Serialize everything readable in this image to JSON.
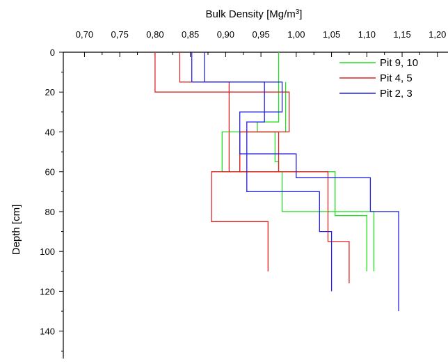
{
  "chart_data": {
    "type": "line",
    "xlabel": "Bulk Density [Mg/m",
    "xlabel_sup": "3",
    "xlabel_end": "]",
    "ylabel": "Depth [cm]",
    "x_axis_position": "top",
    "y_axis_inverted": true,
    "xlim": [
      0.67,
      1.215
    ],
    "ylim": [
      0,
      152
    ],
    "x_ticks": [
      "0,70",
      "0,75",
      "0,80",
      "0,85",
      "0,90",
      "0,95",
      "1,00",
      "1,05",
      "1,10",
      "1,15",
      "1,20"
    ],
    "x_tick_values": [
      0.7,
      0.75,
      0.8,
      0.85,
      0.9,
      0.95,
      1.0,
      1.05,
      1.1,
      1.15,
      1.2
    ],
    "y_ticks": [
      "0",
      "20",
      "40",
      "60",
      "80",
      "100",
      "120",
      "140"
    ],
    "y_tick_values": [
      0,
      20,
      40,
      60,
      80,
      100,
      120,
      140
    ],
    "grid": false,
    "legend_position": "top-right",
    "series": [
      {
        "name": "Pit 9, 10",
        "color": "#22dd22",
        "profiles": [
          [
            [
              0.975,
              0
            ],
            [
              0.975,
              15
            ],
            [
              0.975,
              15
            ],
            [
              0.975,
              35
            ],
            [
              0.945,
              35
            ],
            [
              0.945,
              40
            ],
            [
              0.97,
              40
            ],
            [
              0.97,
              55
            ],
            [
              0.975,
              55
            ],
            [
              0.975,
              60
            ],
            [
              1.055,
              60
            ],
            [
              1.055,
              82
            ],
            [
              1.1,
              82
            ],
            [
              1.1,
              110
            ]
          ],
          [
            [
              0.985,
              15
            ],
            [
              0.985,
              40
            ],
            [
              0.895,
              40
            ],
            [
              0.895,
              60
            ],
            [
              0.98,
              60
            ],
            [
              0.98,
              80
            ],
            [
              1.11,
              80
            ],
            [
              1.11,
              110
            ]
          ]
        ]
      },
      {
        "name": "Pit 4, 5",
        "color": "#dd2222",
        "profiles": [
          [
            [
              0.8,
              0
            ],
            [
              0.8,
              20
            ],
            [
              0.99,
              20
            ],
            [
              0.99,
              40
            ],
            [
              0.92,
              40
            ],
            [
              0.92,
              60
            ],
            [
              1.045,
              60
            ],
            [
              1.045,
              95
            ],
            [
              1.075,
              95
            ],
            [
              1.075,
              116
            ]
          ],
          [
            [
              0.835,
              0
            ],
            [
              0.835,
              15
            ],
            [
              0.905,
              15
            ],
            [
              0.905,
              60
            ],
            [
              0.98,
              60
            ],
            [
              0.975,
              60
            ],
            [
              0.975,
              40
            ],
            [
              0.92,
              40
            ],
            [
              0.92,
              60
            ],
            [
              0.88,
              60
            ],
            [
              0.88,
              85
            ],
            [
              0.96,
              85
            ],
            [
              0.96,
              110
            ]
          ]
        ]
      },
      {
        "name": "Pit 2, 3",
        "color": "#2222dd",
        "profiles": [
          [
            [
              0.852,
              0
            ],
            [
              0.852,
              15
            ],
            [
              0.98,
              15
            ],
            [
              0.98,
              30
            ],
            [
              0.92,
              30
            ],
            [
              0.92,
              51
            ],
            [
              1.0,
              51
            ],
            [
              1.0,
              63
            ],
            [
              1.105,
              63
            ],
            [
              1.105,
              80
            ],
            [
              1.145,
              80
            ],
            [
              1.145,
              130
            ]
          ],
          [
            [
              0.87,
              0
            ],
            [
              0.87,
              15
            ],
            [
              0.955,
              15
            ],
            [
              0.955,
              35
            ],
            [
              0.93,
              35
            ],
            [
              0.93,
              70
            ],
            [
              1.033,
              70
            ],
            [
              1.033,
              90
            ],
            [
              1.05,
              90
            ],
            [
              1.05,
              120
            ]
          ]
        ]
      }
    ]
  }
}
